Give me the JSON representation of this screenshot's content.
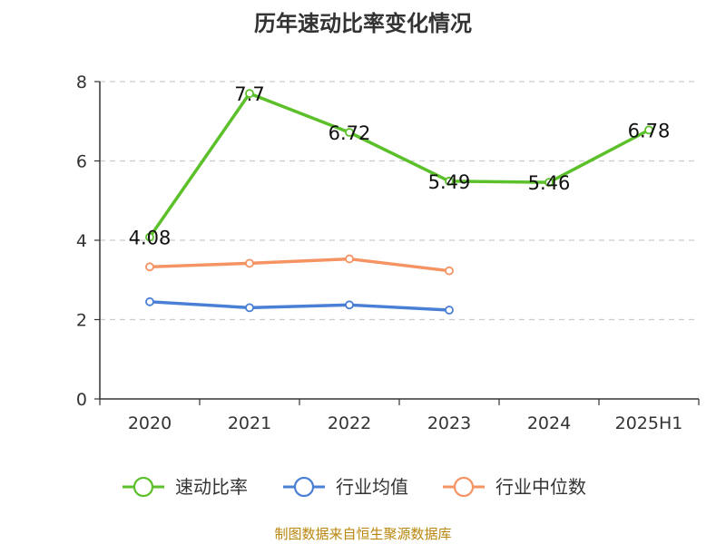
{
  "colors": {
    "speed_ratio": "#5bc02a",
    "industry_avg": "#4a7fd6",
    "industry_median": "#f59363",
    "grid": "#cccccc",
    "axis": "#333333",
    "source": "#b8860b"
  },
  "chart_data": {
    "type": "line",
    "title": "历年速动比率变化情况",
    "categories": [
      "2020",
      "2021",
      "2022",
      "2023",
      "2024",
      "2025H1"
    ],
    "ylim": [
      0,
      8
    ],
    "yticks": [
      0,
      2,
      4,
      6,
      8
    ],
    "grid": true,
    "legend_position": "bottom",
    "series": [
      {
        "name": "速动比率",
        "color": "#5bc02a",
        "values": [
          4.08,
          7.7,
          6.72,
          5.49,
          5.46,
          6.78
        ],
        "labels": [
          "4.08",
          "7.7",
          "6.72",
          "5.49",
          "5.46",
          "6.78"
        ]
      },
      {
        "name": "行业均值",
        "color": "#4a7fd6",
        "values": [
          2.45,
          2.3,
          2.37,
          2.24,
          null,
          null
        ]
      },
      {
        "name": "行业中位数",
        "color": "#f59363",
        "values": [
          3.33,
          3.42,
          3.53,
          3.23,
          null,
          null
        ]
      }
    ]
  },
  "source_text": "制图数据来自恒生聚源数据库"
}
